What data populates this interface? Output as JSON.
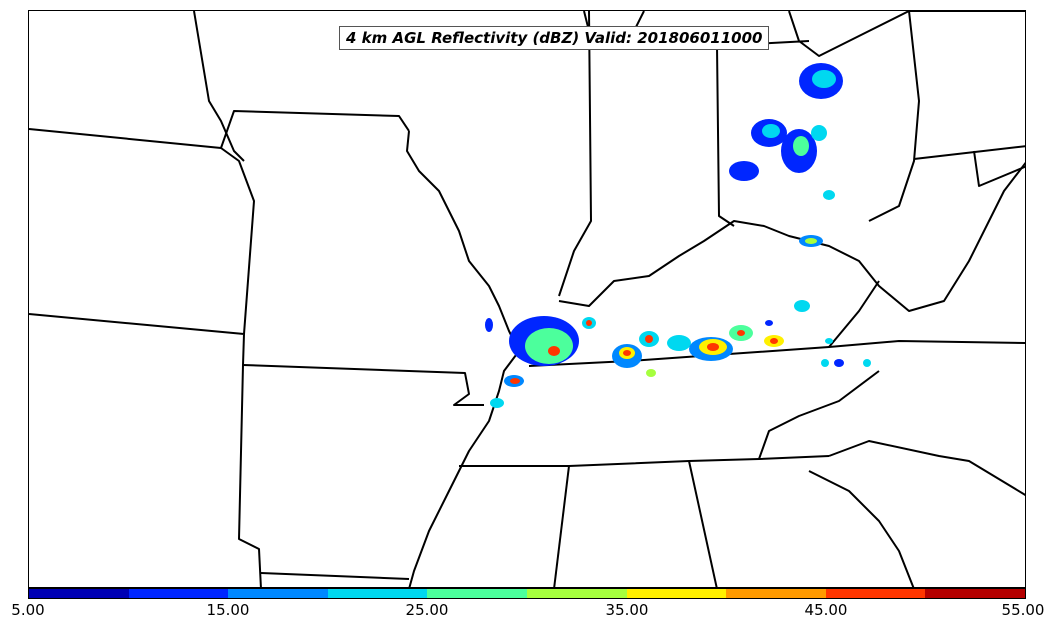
{
  "map": {
    "title": "4 km AGL Reflectivity (dBZ) Valid: 201806011000",
    "variable": "reflectivity"
  },
  "colorbar": {
    "min": 5.0,
    "max": 55.0,
    "tick_labels": [
      "5.00",
      "15.00",
      "25.00",
      "35.00",
      "45.00",
      "55.00"
    ],
    "colors": [
      "#0000b4",
      "#0026ff",
      "#0088ff",
      "#00d8f0",
      "#4cff9c",
      "#a6ff3e",
      "#fff000",
      "#ff9a00",
      "#ff3600",
      "#b40000"
    ]
  }
}
